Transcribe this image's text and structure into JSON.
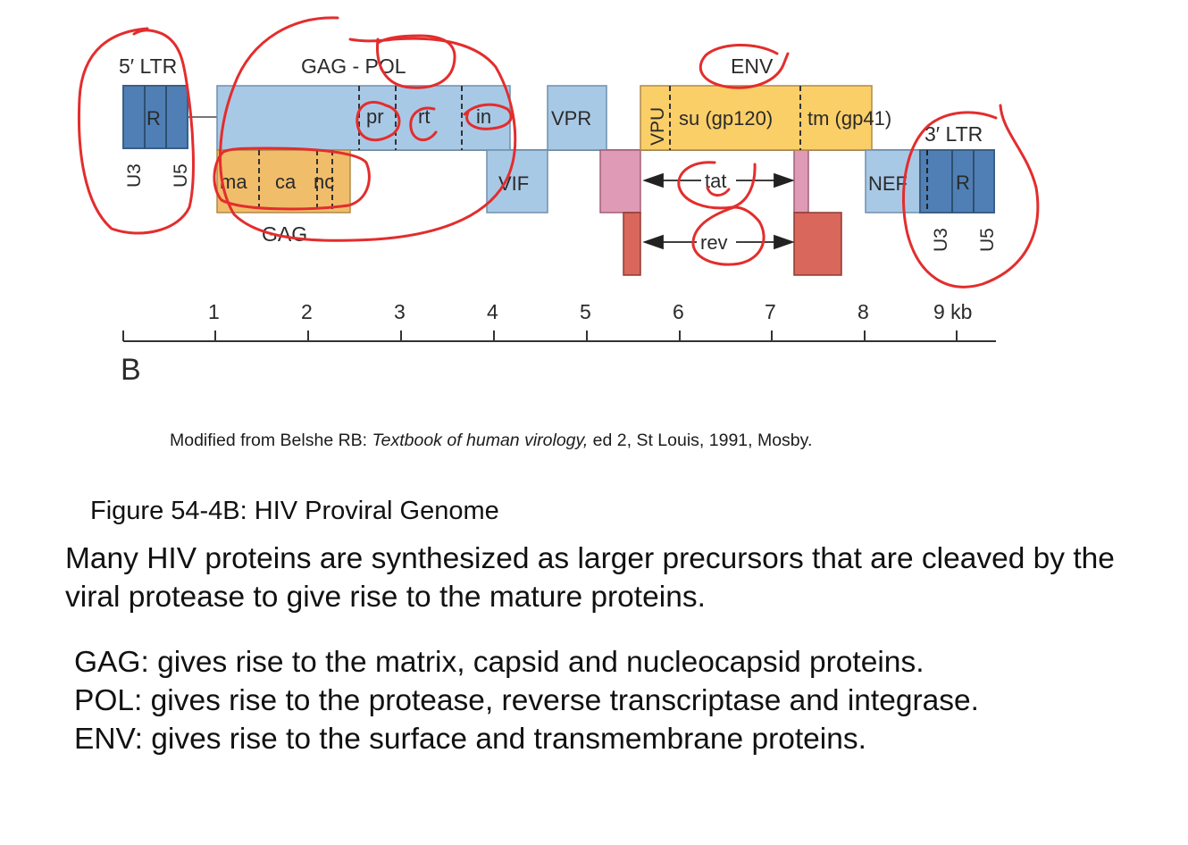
{
  "genome": {
    "ltr5_label": "5′ LTR",
    "ltr3_label": "3′ LTR",
    "gag_pol_label": "GAG - POL",
    "env_label": "ENV",
    "gag_label": "GAG",
    "ltr_segments": {
      "r": "R",
      "u3": "U3",
      "u5": "U5"
    },
    "pol_segments": {
      "pr": "pr",
      "rt": "rt",
      "in": "in"
    },
    "gag_segments": {
      "ma": "ma",
      "ca": "ca",
      "nc": "nc"
    },
    "env_segments": {
      "su": "su (gp120)",
      "tm": "tm (gp41)"
    },
    "accessory": {
      "vif": "VIF",
      "vpr": "VPR",
      "vpu": "VPU",
      "nef": "NEF",
      "tat": "tat",
      "rev": "rev"
    },
    "panel_letter": "B"
  },
  "scale": {
    "ticks": [
      "1",
      "2",
      "3",
      "4",
      "5",
      "6",
      "7",
      "8",
      "9 kb"
    ]
  },
  "colors": {
    "ltr": "#4f7fb5",
    "pol_blue": "#a8c9e6",
    "gag_orange": "#f0bd6a",
    "env_orange": "#fbcf68",
    "tat_pink": "#df9ab5",
    "rev_red": "#d9675b",
    "annotation_red": "#e32d2d"
  },
  "citation": {
    "prefix": "Modified from Belshe RB: ",
    "title": "Textbook of human virology,",
    "suffix": " ed 2, St Louis, 1991, Mosby."
  },
  "caption": "Figure 54-4B: HIV Proviral Genome",
  "paragraph": "Many HIV proteins are synthesized as larger precursors that are cleaved by the viral protease to give rise to the mature proteins.",
  "gene_descriptions": [
    "GAG: gives rise to the matrix, capsid and nucleocapsid proteins.",
    "POL: gives rise to the protease, reverse transcriptase and integrase.",
    "ENV: gives rise to the surface and transmembrane proteins."
  ]
}
